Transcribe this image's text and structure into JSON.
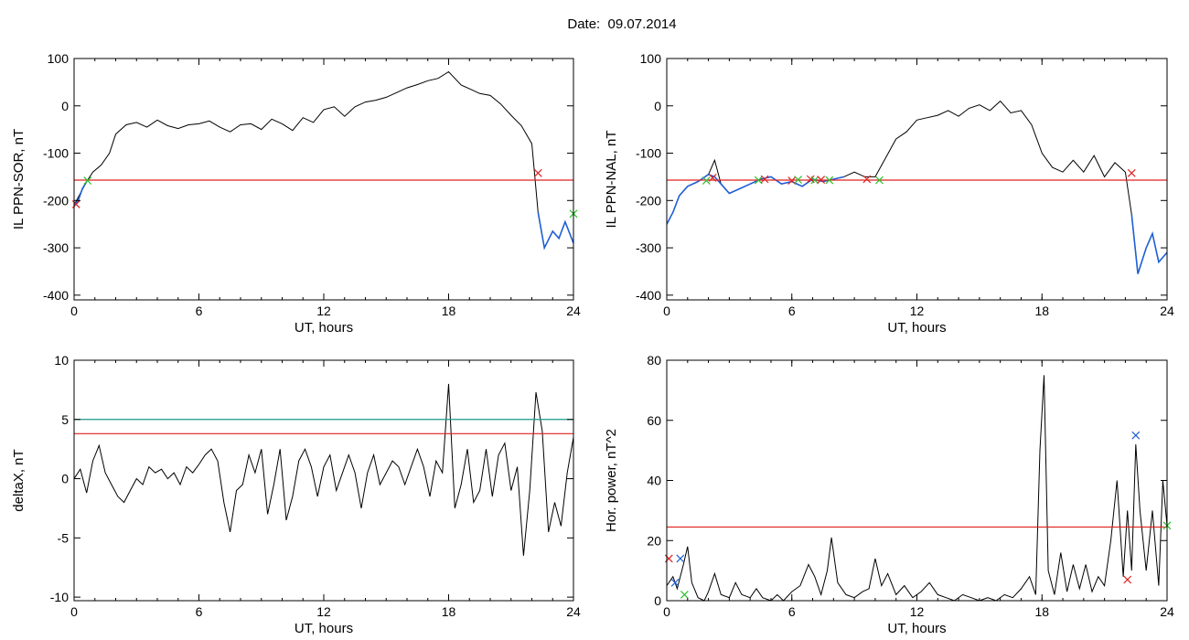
{
  "title": "Date:  09.07.2014",
  "colors": {
    "frame": "#000000",
    "trace": "#000000",
    "selected": "#1f5fd6",
    "threshold": "#e02020",
    "threshold2": "#1a9a8a",
    "marker_red": "#e02020",
    "marker_green": "#2ec02e",
    "marker_blue": "#1f5fd6"
  },
  "chart_data": [
    {
      "type": "line",
      "ylabel": "IL PPN-SOR, nT",
      "xlabel": "UT, hours",
      "xlim": [
        0,
        24
      ],
      "ylim": [
        -410,
        100
      ],
      "xticks": [
        "0",
        "6",
        "12",
        "18",
        "24"
      ],
      "yticks": [
        "100",
        "0",
        "-100",
        "-200",
        "-300",
        "-400"
      ],
      "ytick_values": [
        100,
        0,
        -100,
        -200,
        -300,
        -400
      ],
      "threshold": -157,
      "series": [
        {
          "role": "trace",
          "x": [
            0,
            0.3,
            0.6,
            0.9,
            1.3,
            1.7,
            2.0,
            2.5,
            3.0,
            3.5,
            4.0,
            4.5,
            5.0,
            5.5,
            6.0,
            6.5,
            7.0,
            7.5,
            8.0,
            8.5,
            9.0,
            9.5,
            10.0,
            10.5,
            11.0,
            11.5,
            12.0,
            12.5,
            13.0,
            13.5,
            14.0,
            14.5,
            15.0,
            15.5,
            16.0,
            16.5,
            17.0,
            17.5,
            18.0,
            18.3,
            18.6,
            19.0,
            19.5,
            20.0,
            20.5,
            21.0,
            21.5,
            22.0,
            22.3,
            22.6,
            23.0,
            23.3,
            23.6,
            24.0
          ],
          "y": [
            -210,
            -185,
            -160,
            -140,
            -125,
            -100,
            -60,
            -40,
            -35,
            -45,
            -30,
            -42,
            -48,
            -40,
            -38,
            -32,
            -45,
            -55,
            -40,
            -38,
            -50,
            -28,
            -38,
            -52,
            -25,
            -35,
            -8,
            -2,
            -22,
            -2,
            8,
            12,
            18,
            28,
            38,
            45,
            53,
            58,
            72,
            58,
            44,
            36,
            26,
            22,
            4,
            -20,
            -42,
            -80,
            -225,
            -300,
            -265,
            -280,
            -245,
            -290
          ]
        },
        {
          "role": "selected",
          "x": [
            0,
            0.2,
            0.4,
            0.6
          ],
          "y": [
            -210,
            -200,
            -175,
            -160
          ]
        },
        {
          "role": "selected",
          "x": [
            22.3,
            22.6,
            23.0,
            23.3,
            23.6,
            24.0
          ],
          "y": [
            -225,
            -300,
            -265,
            -280,
            -245,
            -290
          ]
        }
      ],
      "markers": [
        {
          "x": 0.1,
          "y": -208,
          "color": "red"
        },
        {
          "x": 0.65,
          "y": -158,
          "color": "green"
        },
        {
          "x": 22.3,
          "y": -142,
          "color": "red"
        },
        {
          "x": 24.0,
          "y": -228,
          "color": "green"
        }
      ]
    },
    {
      "type": "line",
      "ylabel": "IL PPN-NAL, nT",
      "xlabel": "UT, hours",
      "xlim": [
        0,
        24
      ],
      "ylim": [
        -410,
        100
      ],
      "xticks": [
        "0",
        "6",
        "12",
        "18",
        "24"
      ],
      "yticks": [
        "100",
        "0",
        "-100",
        "-200",
        "-300",
        "-400"
      ],
      "ytick_values": [
        100,
        0,
        -100,
        -200,
        -300,
        -400
      ],
      "threshold": -157,
      "series": [
        {
          "role": "trace",
          "x": [
            0,
            0.3,
            0.6,
            1.0,
            1.5,
            2.0,
            2.3,
            2.6,
            3.0,
            3.5,
            4.0,
            4.5,
            5.0,
            5.5,
            6.0,
            6.5,
            7.0,
            7.5,
            8.0,
            8.5,
            9.0,
            9.5,
            10.0,
            10.5,
            11.0,
            11.5,
            12.0,
            12.5,
            13.0,
            13.5,
            14.0,
            14.5,
            15.0,
            15.5,
            16.0,
            16.5,
            17.0,
            17.5,
            18.0,
            18.5,
            19.0,
            19.5,
            20.0,
            20.5,
            21.0,
            21.5,
            22.0,
            22.3,
            22.6,
            23.0,
            23.3,
            23.6,
            24.0
          ],
          "y": [
            -250,
            -225,
            -190,
            -170,
            -160,
            -145,
            -115,
            -165,
            -185,
            -175,
            -165,
            -155,
            -150,
            -165,
            -160,
            -170,
            -155,
            -160,
            -155,
            -150,
            -140,
            -150,
            -150,
            -110,
            -70,
            -55,
            -30,
            -25,
            -20,
            -10,
            -22,
            -5,
            2,
            -10,
            10,
            -15,
            -10,
            -40,
            -100,
            -130,
            -140,
            -115,
            -140,
            -105,
            -150,
            -120,
            -140,
            -230,
            -355,
            -300,
            -270,
            -330,
            -310
          ]
        },
        {
          "role": "selected",
          "x": [
            0,
            0.3,
            0.6,
            1.0,
            1.5,
            2.0,
            2.3,
            2.6,
            3.0,
            3.5,
            4.0,
            4.5,
            5.0,
            5.5,
            6.0,
            6.5,
            7.0,
            7.5,
            8.0,
            8.5
          ],
          "y": [
            -250,
            -225,
            -190,
            -170,
            -160,
            -145,
            -150,
            -165,
            -185,
            -175,
            -165,
            -155,
            -150,
            -165,
            -160,
            -170,
            -155,
            -160,
            -155,
            -150
          ]
        },
        {
          "role": "selected",
          "x": [
            22.3,
            22.6,
            23.0,
            23.3,
            23.6,
            24.0
          ],
          "y": [
            -230,
            -355,
            -300,
            -270,
            -330,
            -310
          ]
        }
      ],
      "markers": [
        {
          "x": 1.9,
          "y": -158,
          "color": "green"
        },
        {
          "x": 2.2,
          "y": -152,
          "color": "red"
        },
        {
          "x": 4.4,
          "y": -157,
          "color": "green"
        },
        {
          "x": 4.7,
          "y": -155,
          "color": "red"
        },
        {
          "x": 6.0,
          "y": -158,
          "color": "red"
        },
        {
          "x": 6.3,
          "y": -156,
          "color": "green"
        },
        {
          "x": 6.9,
          "y": -155,
          "color": "red"
        },
        {
          "x": 7.1,
          "y": -157,
          "color": "green"
        },
        {
          "x": 7.4,
          "y": -156,
          "color": "red"
        },
        {
          "x": 7.8,
          "y": -157,
          "color": "green"
        },
        {
          "x": 9.6,
          "y": -155,
          "color": "red"
        },
        {
          "x": 10.2,
          "y": -157,
          "color": "green"
        },
        {
          "x": 22.3,
          "y": -142,
          "color": "red"
        }
      ]
    },
    {
      "type": "line",
      "ylabel": "deltaX, nT",
      "xlabel": "UT, hours",
      "xlim": [
        0,
        24
      ],
      "ylim": [
        -10.3,
        10
      ],
      "xticks": [
        "0",
        "6",
        "12",
        "18",
        "24"
      ],
      "yticks": [
        "10",
        "5",
        "0",
        "-5",
        "-10"
      ],
      "ytick_values": [
        10,
        5,
        0,
        -5,
        -10
      ],
      "threshold": 3.8,
      "threshold2": 5.0,
      "series": [
        {
          "role": "trace",
          "x": [
            0,
            0.3,
            0.6,
            0.9,
            1.2,
            1.5,
            1.8,
            2.1,
            2.4,
            2.7,
            3.0,
            3.3,
            3.6,
            3.9,
            4.2,
            4.5,
            4.8,
            5.1,
            5.4,
            5.7,
            6.0,
            6.3,
            6.6,
            6.9,
            7.2,
            7.5,
            7.8,
            8.1,
            8.4,
            8.7,
            9.0,
            9.3,
            9.6,
            9.9,
            10.2,
            10.5,
            10.8,
            11.1,
            11.4,
            11.7,
            12.0,
            12.3,
            12.6,
            12.9,
            13.2,
            13.5,
            13.8,
            14.1,
            14.4,
            14.7,
            15.0,
            15.3,
            15.6,
            15.9,
            16.2,
            16.5,
            16.8,
            17.1,
            17.4,
            17.7,
            18.0,
            18.3,
            18.6,
            18.9,
            19.2,
            19.5,
            19.8,
            20.1,
            20.4,
            20.7,
            21.0,
            21.3,
            21.6,
            21.9,
            22.2,
            22.5,
            22.8,
            23.1,
            23.4,
            23.7,
            24.0
          ],
          "y": [
            0,
            0.8,
            -1.2,
            1.5,
            2.8,
            0.5,
            -0.5,
            -1.5,
            -2.0,
            -1.0,
            0.0,
            -0.5,
            1.0,
            0.5,
            0.8,
            0.0,
            0.5,
            -0.5,
            1.0,
            0.5,
            1.2,
            2.0,
            2.5,
            1.5,
            -2.0,
            -4.5,
            -1.0,
            -0.5,
            2.0,
            0.5,
            2.5,
            -3.0,
            -0.5,
            2.5,
            -3.5,
            -1.5,
            1.5,
            2.5,
            1.0,
            -1.5,
            1.0,
            2.0,
            -1.0,
            0.5,
            2.0,
            0.5,
            -2.5,
            0.5,
            2.0,
            -0.5,
            0.5,
            1.5,
            1.0,
            -0.5,
            1.0,
            2.5,
            1.0,
            -1.5,
            1.5,
            0.5,
            8.0,
            -2.5,
            -0.5,
            2.5,
            -2.0,
            -1.0,
            2.5,
            -1.5,
            2.0,
            3.0,
            -1.0,
            1.0,
            -6.5,
            -1.0,
            7.3,
            4.0,
            -4.5,
            -2.0,
            -4.0,
            0.5,
            3.5
          ]
        }
      ],
      "markers": []
    },
    {
      "type": "line",
      "ylabel": "Hor. power, nT^2",
      "xlabel": "UT, hours",
      "xlim": [
        0,
        24
      ],
      "ylim": [
        0,
        80
      ],
      "xticks": [
        "0",
        "6",
        "12",
        "18",
        "24"
      ],
      "yticks": [
        "80",
        "60",
        "40",
        "20",
        "0"
      ],
      "ytick_values": [
        80,
        60,
        40,
        20,
        0
      ],
      "threshold": 24.5,
      "series": [
        {
          "role": "trace",
          "x": [
            0,
            0.3,
            0.5,
            0.8,
            1.0,
            1.2,
            1.5,
            1.8,
            2.0,
            2.3,
            2.6,
            3.0,
            3.3,
            3.6,
            4.0,
            4.3,
            4.6,
            5.0,
            5.3,
            5.6,
            6.0,
            6.4,
            6.8,
            7.1,
            7.4,
            7.7,
            7.9,
            8.2,
            8.6,
            9.0,
            9.4,
            9.7,
            10.0,
            10.3,
            10.6,
            11.0,
            11.4,
            11.8,
            12.2,
            12.6,
            13.0,
            13.4,
            13.8,
            14.2,
            14.6,
            15.0,
            15.4,
            15.8,
            16.2,
            16.6,
            17.0,
            17.4,
            17.7,
            17.9,
            18.1,
            18.3,
            18.6,
            18.9,
            19.2,
            19.5,
            19.8,
            20.1,
            20.4,
            20.7,
            21.0,
            21.3,
            21.6,
            21.9,
            22.1,
            22.3,
            22.5,
            22.7,
            23.0,
            23.3,
            23.6,
            23.8,
            24.0
          ],
          "y": [
            5,
            8,
            4,
            12,
            18,
            6,
            1,
            0,
            3,
            9,
            2,
            1,
            6,
            2,
            1,
            4,
            1,
            0,
            2,
            0,
            3,
            5,
            12,
            8,
            2,
            10,
            21,
            6,
            2,
            1,
            3,
            4,
            14,
            5,
            9,
            2,
            5,
            1,
            3,
            6,
            2,
            1,
            0,
            2,
            1,
            0,
            1,
            0,
            2,
            1,
            4,
            8,
            2,
            50,
            75,
            10,
            2,
            16,
            3,
            12,
            4,
            12,
            3,
            8,
            5,
            20,
            40,
            8,
            30,
            10,
            52,
            30,
            10,
            30,
            5,
            40,
            25
          ]
        }
      ],
      "markers": [
        {
          "x": 0.1,
          "y": 14,
          "color": "red"
        },
        {
          "x": 0.4,
          "y": 6,
          "color": "blue"
        },
        {
          "x": 0.65,
          "y": 14,
          "color": "blue"
        },
        {
          "x": 0.85,
          "y": 2,
          "color": "green"
        },
        {
          "x": 22.1,
          "y": 7,
          "color": "red"
        },
        {
          "x": 22.5,
          "y": 55,
          "color": "blue"
        },
        {
          "x": 24.0,
          "y": 25,
          "color": "green"
        }
      ]
    }
  ]
}
